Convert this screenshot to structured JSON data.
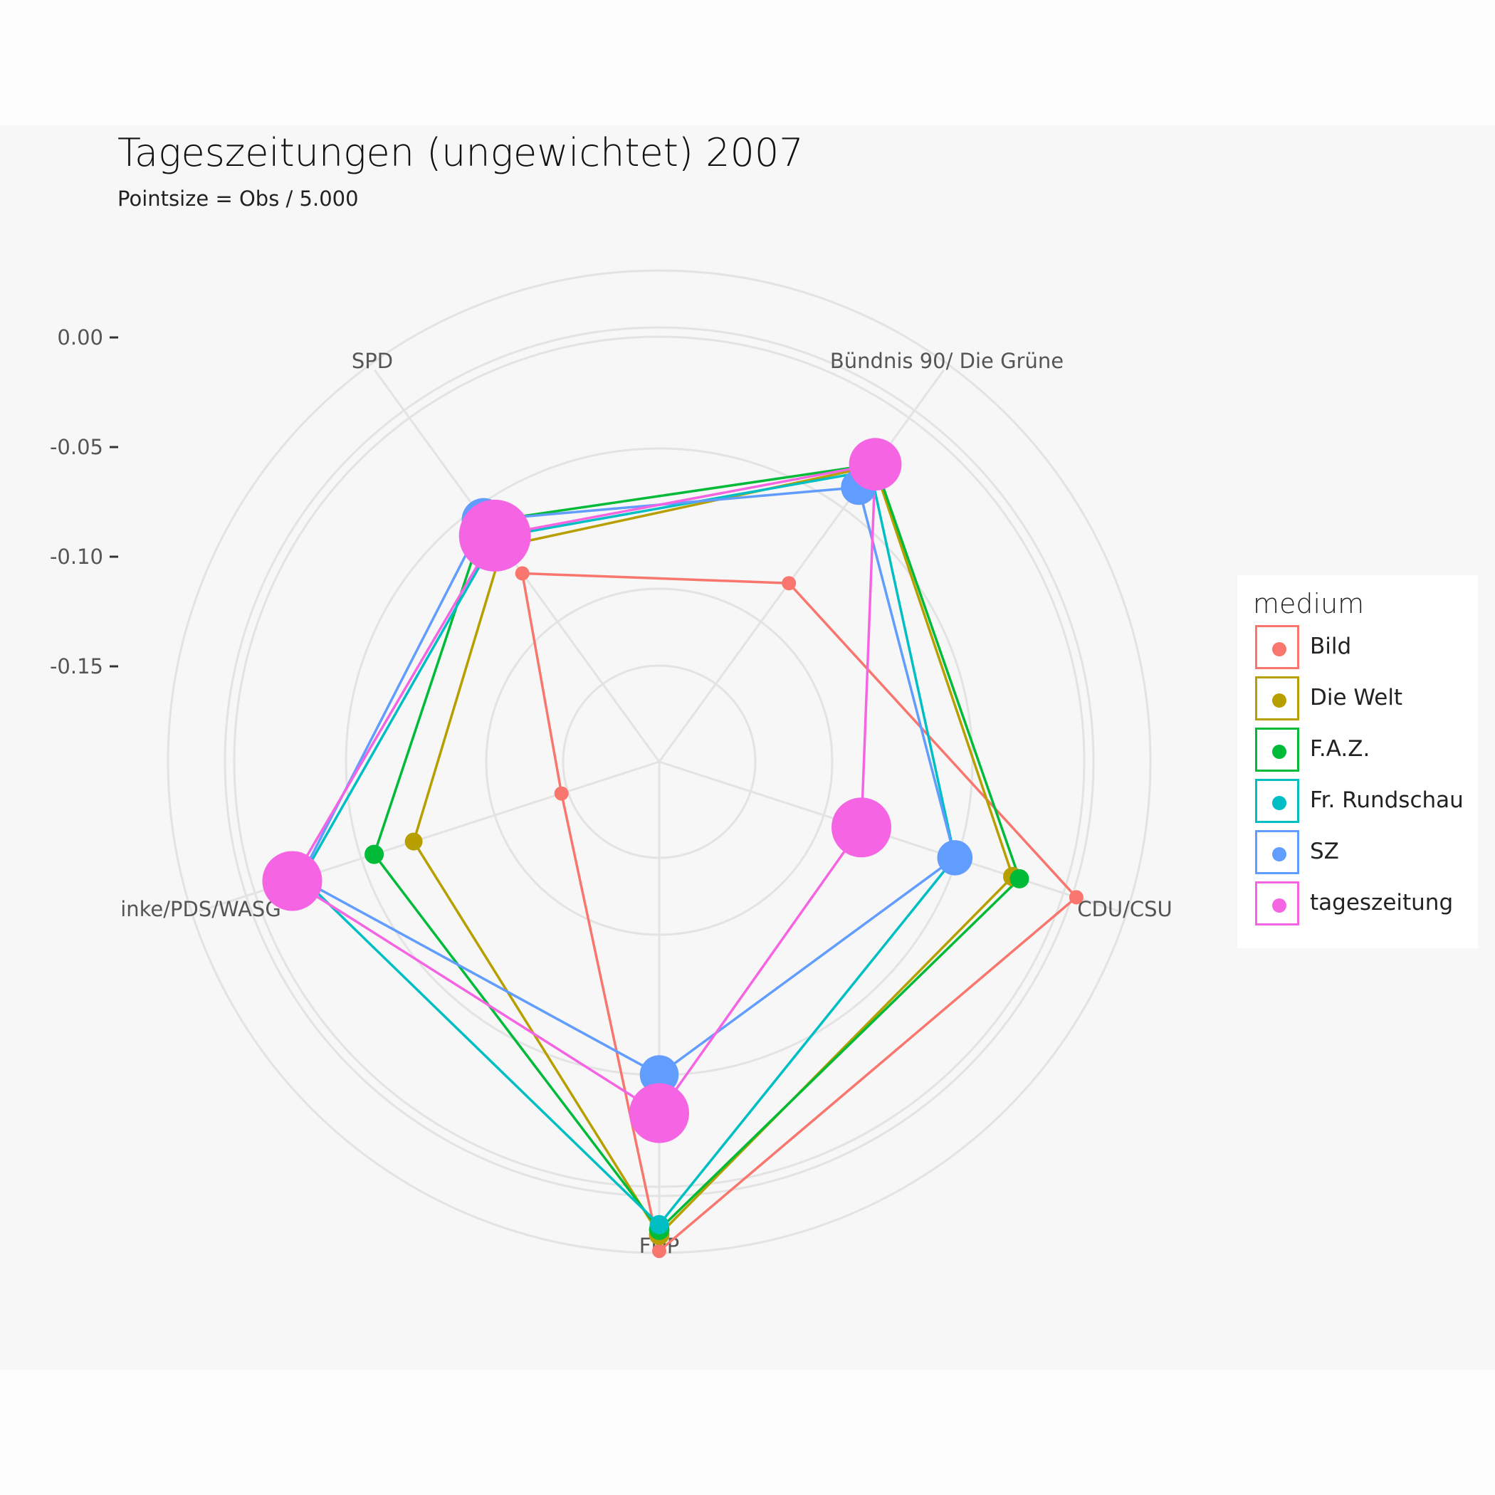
{
  "chart_data": {
    "type": "radar",
    "title": "Tageszeitungen (ungewichtet) 2007",
    "subtitle": "Pointsize = Obs / 5.000",
    "axes": [
      "Bündnis 90/ Die Grüne",
      "CDU/CSU",
      "FDP",
      "inke/PDS/WASG",
      "SPD"
    ],
    "radial_ticks": [
      "0.00",
      "-0.05",
      "-0.10",
      "-0.15"
    ],
    "radial_range": [
      -0.195,
      0.0
    ],
    "legend_title": "medium",
    "legend_position": "right",
    "grid": true,
    "series": [
      {
        "name": "Bild",
        "color": "#F8766D",
        "values": [
          -0.1335,
          -0.026,
          -0.001,
          -0.1917,
          -0.1275
        ],
        "obs": [
          0.1,
          0.1,
          0.1,
          0.1,
          0.1
        ]
      },
      {
        "name": "Die Welt",
        "color": "#B79F00",
        "values": [
          -0.062,
          -0.059,
          -0.009,
          -0.115,
          -0.111
        ],
        "obs": [
          0.2,
          0.25,
          0.3,
          0.2,
          0.2
        ]
      },
      {
        "name": "F.A.Z.",
        "color": "#00BA38",
        "values": [
          -0.061,
          -0.0555,
          -0.0115,
          -0.0945,
          -0.096
        ],
        "obs": [
          0.2,
          0.25,
          0.3,
          0.25,
          0.2
        ]
      },
      {
        "name": "Fr. Rundschau",
        "color": "#00BFC4",
        "values": [
          -0.065,
          -0.089,
          -0.014,
          -0.057,
          -0.1055
        ],
        "obs": [
          0.2,
          0.2,
          0.25,
          0.2,
          0.2
        ]
      },
      {
        "name": "SZ",
        "color": "#619CFF",
        "values": [
          -0.075,
          -0.089,
          -0.088,
          -0.056,
          -0.095
        ],
        "obs": [
          1.2,
          1.2,
          1.5,
          1.2,
          2.0
        ]
      },
      {
        "name": "tageszeitung",
        "color": "#F564E3",
        "values": [
          -0.061,
          -0.1375,
          -0.069,
          -0.052,
          -0.1045
        ],
        "obs": [
          3.0,
          4.0,
          4.0,
          4.0,
          6.0
        ]
      }
    ]
  }
}
